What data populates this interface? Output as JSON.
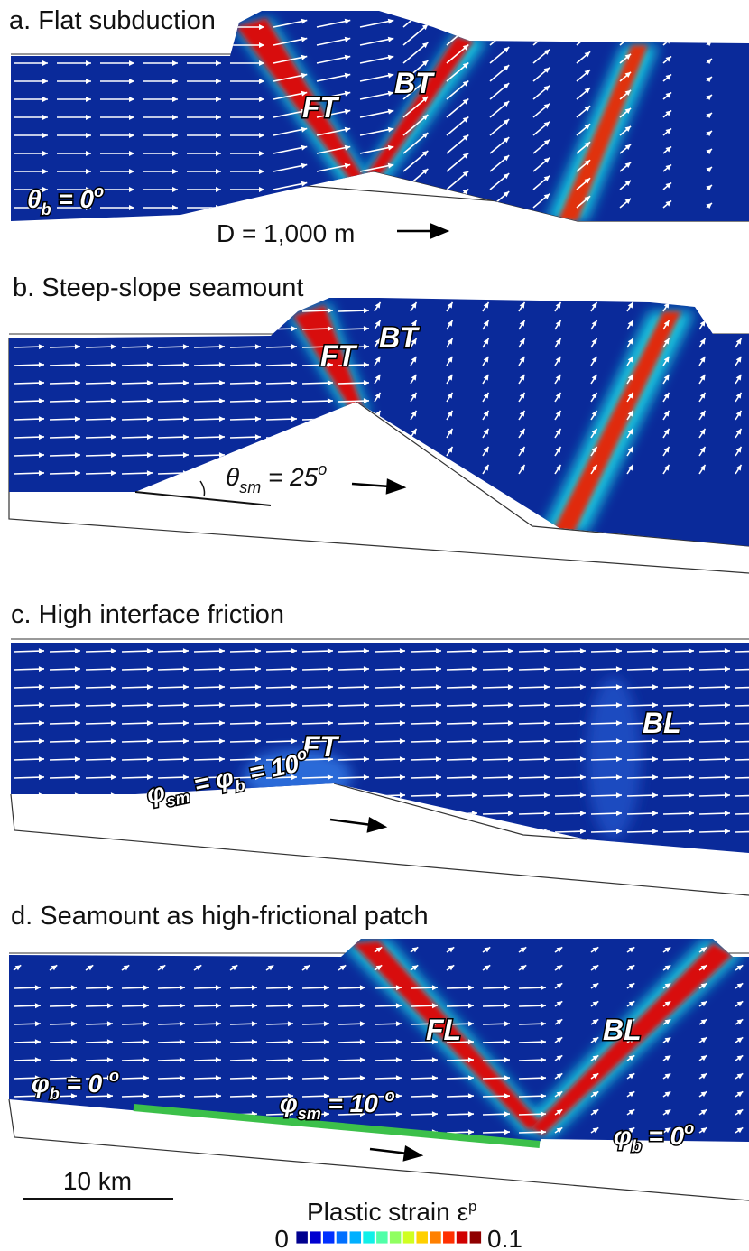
{
  "panels": [
    {
      "title": "a. Flat subduction",
      "labels": [
        "FT",
        "BT"
      ],
      "equations": [
        [
          {
            "text": "θ"
          },
          {
            "sub": "b"
          },
          {
            "text": " = 0"
          },
          {
            "sup": "o"
          }
        ]
      ],
      "note": "D = 1,000 m"
    },
    {
      "title": "b. Steep-slope seamount",
      "labels": [
        "FT",
        "BT"
      ],
      "equations": [
        [
          {
            "text": "θ"
          },
          {
            "sub": "sm"
          },
          {
            "text": " = 25"
          },
          {
            "sup": "o"
          }
        ]
      ]
    },
    {
      "title": "c. High interface friction",
      "labels": [
        "FT",
        "BL"
      ],
      "equations": [
        [
          {
            "text": "φ"
          },
          {
            "sub": "sm"
          },
          {
            "text": " = φ"
          },
          {
            "sub": "b"
          },
          {
            "text": " = 10"
          },
          {
            "sup": "o"
          }
        ]
      ]
    },
    {
      "title": "d. Seamount as high-frictional patch",
      "labels": [
        "FL",
        "BL"
      ],
      "equations": [
        [
          {
            "text": "φ"
          },
          {
            "sub": "b"
          },
          {
            "text": " = 0 "
          },
          {
            "sup": "o"
          }
        ],
        [
          {
            "text": "φ"
          },
          {
            "sub": "sm"
          },
          {
            "text": " = 10 "
          },
          {
            "sup": "o"
          }
        ],
        [
          {
            "text": "φ"
          },
          {
            "sub": "b"
          },
          {
            "text": " = 0"
          },
          {
            "sup": "o"
          }
        ]
      ]
    }
  ],
  "scale_bar": "10 km",
  "colorbar": {
    "title": "Plastic strain ε",
    "title_sup": "p",
    "min": 0,
    "max": 0.1
  }
}
